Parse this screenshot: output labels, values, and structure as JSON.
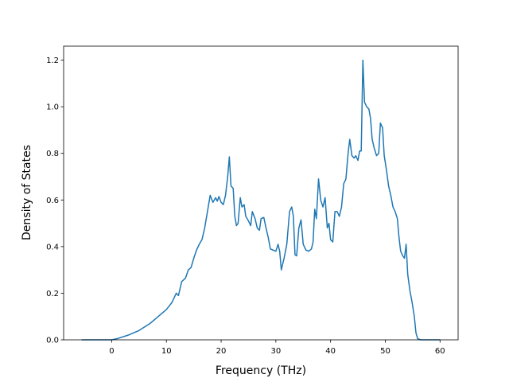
{
  "chart_data": {
    "type": "line",
    "xlabel": "Frequency (THz)",
    "ylabel": "Density of States",
    "color": "#1f77b4",
    "x": [
      -5.5,
      0,
      1,
      3,
      5,
      7,
      8,
      10,
      11,
      11.8,
      12.2,
      12.8,
      13.5,
      14,
      14.5,
      15,
      15.5,
      16,
      16.5,
      17,
      17.5,
      18,
      18.5,
      19,
      19.3,
      19.6,
      20,
      20.4,
      20.8,
      21.2,
      21.5,
      21.8,
      22.2,
      22.5,
      22.8,
      23.1,
      23.5,
      23.8,
      24.2,
      24.5,
      25,
      25.4,
      25.7,
      26.2,
      26.6,
      27,
      27.3,
      27.8,
      28.2,
      28.6,
      29,
      29.5,
      30,
      30.4,
      30.7,
      31,
      31.5,
      32,
      32.5,
      32.9,
      33.2,
      33.5,
      33.8,
      34.2,
      34.6,
      35,
      35.5,
      36,
      36.5,
      36.8,
      37.1,
      37.4,
      37.8,
      38.2,
      38.6,
      39,
      39.4,
      39.7,
      40,
      40.4,
      40.8,
      41.2,
      41.6,
      42,
      42.4,
      42.8,
      43.2,
      43.5,
      43.9,
      44.3,
      44.6,
      45,
      45.3,
      45.6,
      45.9,
      46.2,
      46.6,
      47,
      47.3,
      47.6,
      48,
      48.4,
      48.8,
      49.1,
      49.5,
      49.8,
      50.2,
      50.6,
      51,
      51.4,
      51.8,
      52.2,
      52.5,
      52.8,
      53.2,
      53.5,
      53.8,
      54.1,
      54.5,
      54.9,
      55.3,
      55.6,
      55.9,
      56.5,
      60
    ],
    "values": [
      0,
      0,
      0.005,
      0.02,
      0.04,
      0.07,
      0.09,
      0.13,
      0.16,
      0.2,
      0.19,
      0.25,
      0.265,
      0.3,
      0.31,
      0.35,
      0.385,
      0.41,
      0.43,
      0.48,
      0.55,
      0.62,
      0.59,
      0.61,
      0.595,
      0.615,
      0.59,
      0.58,
      0.62,
      0.7,
      0.785,
      0.66,
      0.65,
      0.53,
      0.49,
      0.5,
      0.61,
      0.57,
      0.58,
      0.53,
      0.51,
      0.49,
      0.55,
      0.52,
      0.48,
      0.47,
      0.52,
      0.525,
      0.48,
      0.44,
      0.39,
      0.385,
      0.38,
      0.41,
      0.38,
      0.3,
      0.35,
      0.41,
      0.55,
      0.57,
      0.53,
      0.365,
      0.36,
      0.48,
      0.515,
      0.41,
      0.385,
      0.38,
      0.39,
      0.42,
      0.56,
      0.52,
      0.69,
      0.6,
      0.57,
      0.61,
      0.48,
      0.5,
      0.43,
      0.42,
      0.55,
      0.55,
      0.53,
      0.57,
      0.67,
      0.69,
      0.8,
      0.86,
      0.79,
      0.78,
      0.79,
      0.77,
      0.81,
      0.81,
      1.2,
      1.02,
      1.0,
      0.99,
      0.95,
      0.86,
      0.82,
      0.79,
      0.8,
      0.93,
      0.91,
      0.79,
      0.73,
      0.66,
      0.62,
      0.57,
      0.55,
      0.52,
      0.44,
      0.38,
      0.36,
      0.35,
      0.41,
      0.28,
      0.21,
      0.16,
      0.1,
      0.03,
      0.005,
      0,
      0
    ],
    "xlim": [
      -8.78,
      63.3
    ],
    "xticks": [
      0,
      10,
      20,
      30,
      40,
      50,
      60
    ],
    "ylim": [
      0,
      1.26
    ],
    "yticks": [
      {
        "value": 0,
        "label": "0.0"
      },
      0.2,
      0.4,
      0.6,
      0.8,
      {
        "value": 1,
        "label": "1.0"
      },
      1.2
    ]
  }
}
